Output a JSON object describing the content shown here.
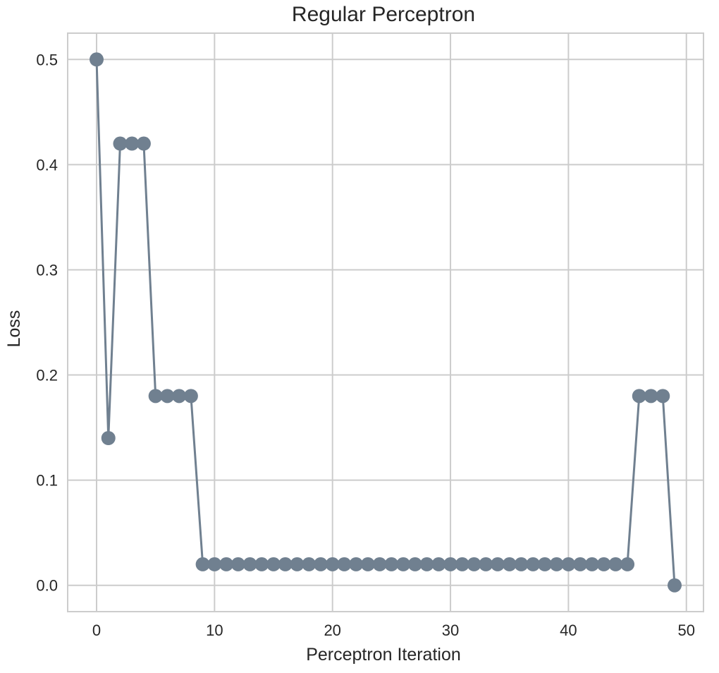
{
  "chart_data": {
    "type": "line",
    "title": "Regular Perceptron",
    "xlabel": "Perceptron Iteration",
    "ylabel": "Loss",
    "xlim": [
      -2.45,
      51.45
    ],
    "ylim": [
      -0.025,
      0.525
    ],
    "xticks": [
      0,
      10,
      20,
      30,
      40,
      50
    ],
    "yticks": [
      0.0,
      0.1,
      0.2,
      0.3,
      0.4,
      0.5
    ],
    "xtick_labels": [
      "0",
      "10",
      "20",
      "30",
      "40",
      "50"
    ],
    "ytick_labels": [
      "0.0",
      "0.1",
      "0.2",
      "0.3",
      "0.4",
      "0.5"
    ],
    "grid": true,
    "legend": "none",
    "series": [
      {
        "color": "#708090",
        "marker": "circle",
        "x": [
          0,
          1,
          2,
          3,
          4,
          5,
          6,
          7,
          8,
          9,
          10,
          11,
          12,
          13,
          14,
          15,
          16,
          17,
          18,
          19,
          20,
          21,
          22,
          23,
          24,
          25,
          26,
          27,
          28,
          29,
          30,
          31,
          32,
          33,
          34,
          35,
          36,
          37,
          38,
          39,
          40,
          41,
          42,
          43,
          44,
          45,
          46,
          47,
          48,
          49
        ],
        "values": [
          0.5,
          0.14,
          0.42,
          0.42,
          0.42,
          0.18,
          0.18,
          0.18,
          0.18,
          0.02,
          0.02,
          0.02,
          0.02,
          0.02,
          0.02,
          0.02,
          0.02,
          0.02,
          0.02,
          0.02,
          0.02,
          0.02,
          0.02,
          0.02,
          0.02,
          0.02,
          0.02,
          0.02,
          0.02,
          0.02,
          0.02,
          0.02,
          0.02,
          0.02,
          0.02,
          0.02,
          0.02,
          0.02,
          0.02,
          0.02,
          0.02,
          0.02,
          0.02,
          0.02,
          0.02,
          0.02,
          0.18,
          0.18,
          0.18,
          0.0
        ]
      }
    ]
  }
}
